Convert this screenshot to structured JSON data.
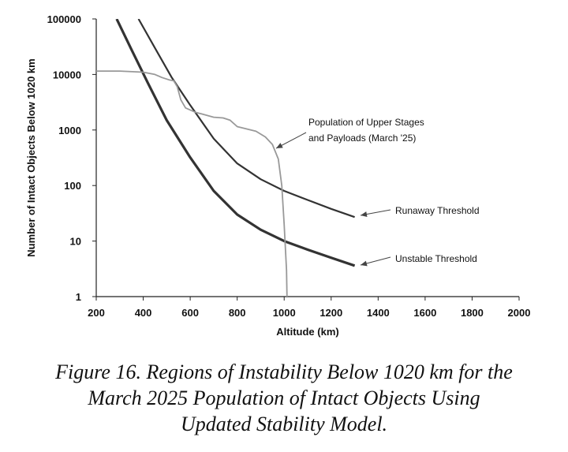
{
  "chart_data": {
    "type": "line",
    "xlabel": "Altitude (km)",
    "ylabel": "Number of Intact Objects Below 1020 km",
    "xlim": [
      200,
      2000
    ],
    "ylim": [
      1,
      100000
    ],
    "y_scale": "log",
    "grid": false,
    "x_ticks": [
      200,
      400,
      600,
      800,
      1000,
      1200,
      1400,
      1600,
      1800,
      2000
    ],
    "y_ticks": [
      1,
      10,
      100,
      1000,
      10000,
      100000
    ],
    "y_tick_labels": [
      "1",
      "10",
      "100",
      "1000",
      "10000",
      "100000"
    ],
    "series": [
      {
        "name": "Runaway Threshold",
        "color": "#333333",
        "points": [
          [
            380,
            100000
          ],
          [
            450,
            30000
          ],
          [
            520,
            9000
          ],
          [
            600,
            2800
          ],
          [
            700,
            700
          ],
          [
            800,
            250
          ],
          [
            900,
            130
          ],
          [
            1000,
            80
          ],
          [
            1100,
            55
          ],
          [
            1200,
            38
          ],
          [
            1300,
            27
          ]
        ]
      },
      {
        "name": "Unstable Threshold",
        "color": "#333333",
        "points": [
          [
            287,
            100000
          ],
          [
            350,
            28000
          ],
          [
            420,
            7000
          ],
          [
            500,
            1500
          ],
          [
            600,
            320
          ],
          [
            700,
            80
          ],
          [
            800,
            30
          ],
          [
            900,
            16
          ],
          [
            1000,
            10
          ],
          [
            1100,
            7
          ],
          [
            1200,
            5
          ],
          [
            1300,
            3.6
          ]
        ]
      },
      {
        "name": "Population of Upper Stages and Payloads (March '25)",
        "color": "#999999",
        "points": [
          [
            200,
            11500
          ],
          [
            300,
            11500
          ],
          [
            400,
            11000
          ],
          [
            450,
            10000
          ],
          [
            480,
            8800
          ],
          [
            510,
            8000
          ],
          [
            530,
            7700
          ],
          [
            545,
            6000
          ],
          [
            560,
            3500
          ],
          [
            580,
            2500
          ],
          [
            620,
            2100
          ],
          [
            700,
            1700
          ],
          [
            740,
            1650
          ],
          [
            770,
            1500
          ],
          [
            800,
            1150
          ],
          [
            880,
            950
          ],
          [
            920,
            750
          ],
          [
            950,
            550
          ],
          [
            975,
            300
          ],
          [
            990,
            100
          ],
          [
            1000,
            20
          ],
          [
            1010,
            3
          ],
          [
            1012,
            1
          ]
        ]
      }
    ],
    "annotations": [
      {
        "text_lines": [
          "Population of Upper Stages",
          "and Payloads (March '25)"
        ],
        "points_to_series": 2
      },
      {
        "text_lines": [
          "Runaway Threshold"
        ],
        "points_to_series": 0
      },
      {
        "text_lines": [
          "Unstable Threshold"
        ],
        "points_to_series": 1
      }
    ]
  },
  "caption": {
    "line1": "Figure 16. Regions of Instability Below 1020 km for the",
    "line2": "March 2025 Population of Intact Objects Using",
    "line3": "Updated Stability Model."
  }
}
